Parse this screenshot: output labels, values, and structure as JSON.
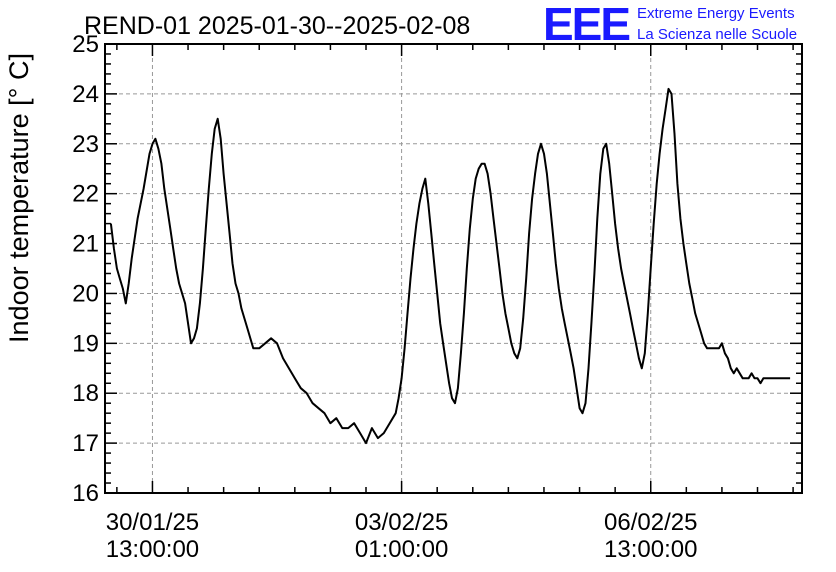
{
  "chart_data": {
    "type": "line",
    "title": "REND-01 2025-01-30--2025-02-08",
    "ylabel": "Indoor temperature [° C]",
    "xlabel": "",
    "ylim": [
      16,
      25
    ],
    "yticks": [
      16,
      17,
      18,
      19,
      20,
      21,
      22,
      23,
      24,
      25
    ],
    "xlim_hours": [
      -16,
      219
    ],
    "xtick_labels": [
      {
        "hour": 0,
        "line1": "30/01/25",
        "line2": "13:00:00"
      },
      {
        "hour": 84,
        "line1": "03/02/25",
        "line2": "01:00:00"
      },
      {
        "hour": 168,
        "line1": "06/02/25",
        "line2": "13:00:00"
      }
    ],
    "grid": true,
    "legend": "none",
    "series": [
      {
        "color": "#000000",
        "x_hours": [
          -14,
          -13,
          -12,
          -11,
          -10,
          -9,
          -8,
          -7,
          -5,
          -3,
          -1,
          0,
          1,
          2,
          3,
          4,
          5,
          6,
          7,
          8,
          9,
          10,
          11,
          13,
          14,
          15,
          16,
          17,
          18,
          19,
          20,
          21,
          22,
          23,
          24,
          25,
          26,
          27,
          28,
          29,
          30,
          32,
          34,
          36,
          38,
          40,
          42,
          44,
          46,
          48,
          50,
          52,
          54,
          56,
          58,
          60,
          62,
          64,
          66,
          68,
          70,
          72,
          74,
          76,
          78,
          80,
          82,
          83,
          84,
          85,
          86,
          87,
          88,
          89,
          90,
          91,
          92,
          93,
          94,
          95,
          96,
          97,
          98,
          99,
          100,
          101,
          102,
          103,
          104,
          105,
          106,
          107,
          108,
          109,
          110,
          111,
          112,
          113,
          114,
          115,
          116,
          117,
          118,
          119,
          120,
          121,
          122,
          123,
          124,
          125,
          126,
          127,
          128,
          129,
          130,
          131,
          132,
          133,
          134,
          135,
          136,
          137,
          138,
          139,
          140,
          141,
          142,
          143,
          144,
          145,
          146,
          147,
          148,
          149,
          150,
          151,
          152,
          153,
          154,
          155,
          156,
          157,
          158,
          159,
          160,
          161,
          162,
          163,
          164,
          165,
          166,
          167,
          168,
          169,
          170,
          171,
          172,
          173,
          174,
          175,
          176,
          177,
          178,
          179,
          180,
          181,
          182,
          183,
          184,
          185,
          186,
          187,
          188,
          189,
          190,
          191,
          192,
          193,
          194,
          195,
          196,
          197,
          198,
          199,
          200,
          201,
          202,
          203,
          204,
          205,
          206,
          207,
          208,
          209,
          210,
          211,
          212,
          213,
          214,
          215
        ],
        "values": [
          21.4,
          20.9,
          20.5,
          20.3,
          20.1,
          19.8,
          20.2,
          20.7,
          21.5,
          22.1,
          22.8,
          23.0,
          23.1,
          22.9,
          22.6,
          22.1,
          21.7,
          21.3,
          20.9,
          20.5,
          20.2,
          20.0,
          19.8,
          19.0,
          19.1,
          19.3,
          19.8,
          20.5,
          21.3,
          22.1,
          22.8,
          23.3,
          23.5,
          23.1,
          22.4,
          21.8,
          21.2,
          20.6,
          20.2,
          20.0,
          19.7,
          19.3,
          18.9,
          18.9,
          19.0,
          19.1,
          19.0,
          18.7,
          18.5,
          18.3,
          18.1,
          18.0,
          17.8,
          17.7,
          17.6,
          17.4,
          17.5,
          17.3,
          17.3,
          17.4,
          17.2,
          17.0,
          17.3,
          17.1,
          17.2,
          17.4,
          17.6,
          17.9,
          18.3,
          18.9,
          19.6,
          20.3,
          20.9,
          21.4,
          21.8,
          22.1,
          22.3,
          21.8,
          21.2,
          20.6,
          20.0,
          19.4,
          19.0,
          18.6,
          18.2,
          17.9,
          17.8,
          18.1,
          18.8,
          19.6,
          20.5,
          21.3,
          21.9,
          22.3,
          22.5,
          22.6,
          22.6,
          22.4,
          22.0,
          21.5,
          21.0,
          20.5,
          20.0,
          19.6,
          19.3,
          19.0,
          18.8,
          18.7,
          18.9,
          19.5,
          20.3,
          21.2,
          21.9,
          22.4,
          22.8,
          23.0,
          22.8,
          22.4,
          21.8,
          21.2,
          20.6,
          20.1,
          19.7,
          19.4,
          19.1,
          18.8,
          18.5,
          18.1,
          17.7,
          17.6,
          17.8,
          18.5,
          19.4,
          20.4,
          21.5,
          22.4,
          22.9,
          23.0,
          22.6,
          22.0,
          21.4,
          20.9,
          20.5,
          20.2,
          19.9,
          19.6,
          19.3,
          19.0,
          18.7,
          18.5,
          18.8,
          19.6,
          20.5,
          21.4,
          22.2,
          22.8,
          23.3,
          23.7,
          24.1,
          24.0,
          23.2,
          22.2,
          21.5,
          21.0,
          20.6,
          20.2,
          19.9,
          19.6,
          19.4,
          19.2,
          19.0,
          18.9,
          18.9,
          18.9,
          18.9,
          18.9,
          19.0,
          18.8,
          18.7,
          18.5,
          18.4,
          18.5,
          18.4,
          18.3,
          18.3,
          18.3,
          18.4,
          18.3,
          18.3,
          18.2,
          18.3,
          18.3,
          18.3,
          18.3,
          18.3,
          18.3,
          18.3,
          18.3,
          18.3,
          18.3
        ]
      }
    ]
  },
  "header": {
    "title": "REND-01 2025-01-30--2025-02-08",
    "logo_text": "EEE",
    "logo_line1": "Extreme Energy Events",
    "logo_line2": "La Scienza nelle Scuole",
    "logo_color": "#1a1aff"
  }
}
